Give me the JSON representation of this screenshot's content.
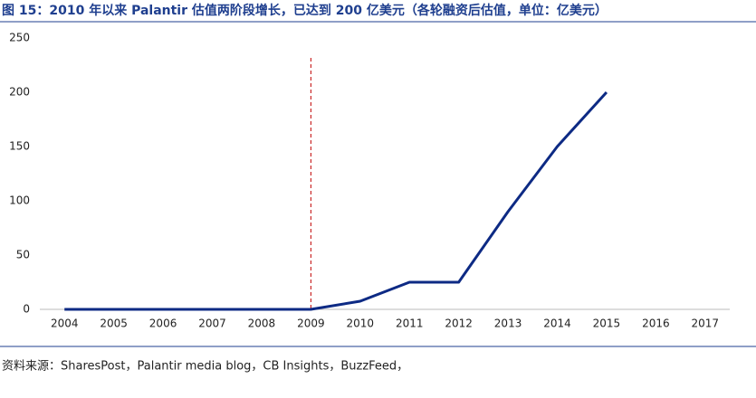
{
  "chart_data": {
    "type": "line",
    "title": "图 15：2010 年以来 Palantir 估值两阶段增长，已达到 200 亿美元（各轮融资后估值，单位：亿美元）",
    "source": "资料来源：SharesPost，Palantir media blog，CB Insights，BuzzFeed，",
    "categories": [
      "2004",
      "2005",
      "2006",
      "2007",
      "2008",
      "2009",
      "2010",
      "2011",
      "2012",
      "2013",
      "2014",
      "2015",
      "2016",
      "2017"
    ],
    "series": [
      {
        "name": "Palantir",
        "color": "#0d2a84",
        "values": [
          0,
          0,
          0,
          0,
          0,
          0,
          7.5,
          25,
          25,
          90,
          150,
          200,
          null,
          null
        ]
      }
    ],
    "reference_line": {
      "x": "2009",
      "color": "#c00000"
    },
    "ylim": [
      0,
      250
    ],
    "yticks": [
      0,
      50,
      100,
      150,
      200,
      250
    ],
    "grid": false
  }
}
